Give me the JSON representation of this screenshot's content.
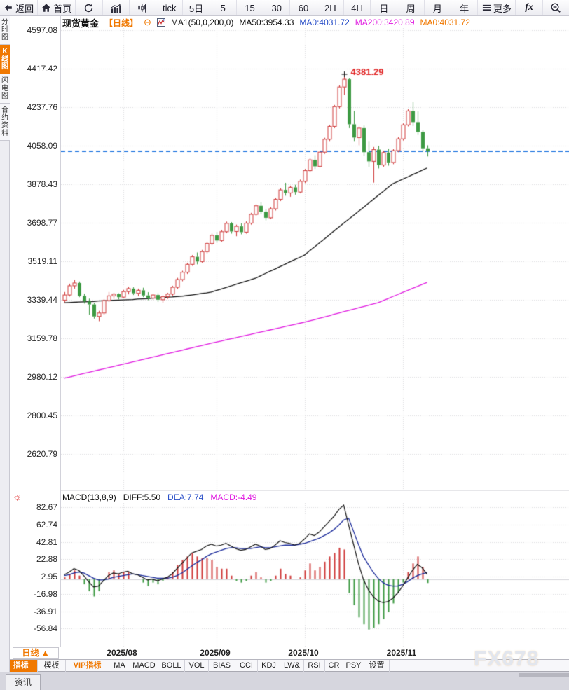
{
  "toolbar": {
    "items": [
      {
        "name": "back",
        "label": "返回",
        "icon": "back-icon",
        "wide": true
      },
      {
        "name": "home",
        "label": "首页",
        "icon": "home-icon",
        "wide": true
      },
      {
        "name": "refresh",
        "label": "",
        "icon": "refresh-icon"
      },
      {
        "name": "bar-chart-mode",
        "label": "",
        "icon": "bar-chart-icon"
      },
      {
        "name": "candle-mode",
        "label": "",
        "icon": "candlestick-icon"
      },
      {
        "name": "tick",
        "label": "tick"
      },
      {
        "name": "5day",
        "label": "5日"
      },
      {
        "name": "5min",
        "label": "5"
      },
      {
        "name": "15min",
        "label": "15"
      },
      {
        "name": "30min",
        "label": "30"
      },
      {
        "name": "60min",
        "label": "60"
      },
      {
        "name": "2h",
        "label": "2H"
      },
      {
        "name": "4h",
        "label": "4H"
      },
      {
        "name": "day",
        "label": "日"
      },
      {
        "name": "week",
        "label": "周"
      },
      {
        "name": "month",
        "label": "月"
      },
      {
        "name": "year",
        "label": "年"
      },
      {
        "name": "more",
        "label": "更多",
        "icon": "menu-icon",
        "wide": true
      },
      {
        "name": "fx",
        "label": "fx",
        "fx": true
      },
      {
        "name": "zoom-out",
        "label": "",
        "icon": "zoom-out-icon"
      }
    ]
  },
  "sidebar": {
    "tabs": [
      {
        "name": "time-share-chart",
        "label": "分时图",
        "active": false
      },
      {
        "name": "kline-chart",
        "label": "K线图",
        "active": true
      },
      {
        "name": "lightning-chart",
        "label": "闪电图",
        "active": false
      },
      {
        "name": "contract-info",
        "label": "合约资料",
        "active": false
      }
    ]
  },
  "news_tab": "资讯",
  "watermark": "FX678",
  "chart_header": {
    "symbol": "现货黄金",
    "period": "【日线】",
    "collapse_glyph": "⊖",
    "ma_settings": "MA1(50,0,200,0)",
    "ma50": "MA50:3954.33",
    "ma0_blue": "MA0:4031.72",
    "ma200": "MA200:3420.89",
    "ma0_orange": "MA0:4031.72"
  },
  "macd_header": {
    "title": "MACD(13,8,9)",
    "diff": "DIFF:5.50",
    "dea": "DEA:7.74",
    "macd": "MACD:-4.49",
    "gear_glyph": "☼"
  },
  "x_axis": {
    "period_button": "日线 ▲"
  },
  "tab_bar": {
    "tabs": [
      {
        "name": "indicator",
        "label": "指标",
        "active": true
      },
      {
        "name": "template",
        "label": "模板"
      },
      {
        "name": "vip-indicator",
        "label": "VIP指标",
        "vip": true
      },
      {
        "name": "ma",
        "label": "MA"
      },
      {
        "name": "macd",
        "label": "MACD"
      },
      {
        "name": "boll",
        "label": "BOLL"
      },
      {
        "name": "vol",
        "label": "VOL"
      },
      {
        "name": "bias",
        "label": "BIAS"
      },
      {
        "name": "cci",
        "label": "CCI"
      },
      {
        "name": "kdj",
        "label": "KDJ"
      },
      {
        "name": "lwr",
        "label": "LW&"
      },
      {
        "name": "rsi",
        "label": "RSI"
      },
      {
        "name": "cr",
        "label": "CR"
      },
      {
        "name": "psy",
        "label": "PSY"
      },
      {
        "name": "settings",
        "label": "设置"
      }
    ]
  },
  "colors": {
    "accent_orange": "#f07800",
    "up_red": "#cf3a3a",
    "down_green": "#3d9a43",
    "ma50": "#111111",
    "ma200": "#e018e0",
    "dea_blue": "#1a2a9a",
    "diff_black": "#111111",
    "price_line_blue": "#2a7be0",
    "peak_label_red": "#e02222",
    "grid": "#dcdcdf"
  },
  "chart_data": {
    "type": "candlestick",
    "symbol": "现货黄金",
    "period": "日线",
    "y_axis_ticks": [
      4597.08,
      4417.42,
      4237.76,
      4058.09,
      3878.43,
      3698.77,
      3519.11,
      3339.44,
      3159.78,
      2980.12,
      2800.45,
      2620.79
    ],
    "current_price": 4031.72,
    "peak_annotation": {
      "price": 4381.29,
      "candle_index": 57
    },
    "months": [
      {
        "label": "2025/08",
        "candle_index": 12
      },
      {
        "label": "2025/09",
        "candle_index": 31
      },
      {
        "label": "2025/10",
        "candle_index": 49
      },
      {
        "label": "2025/11",
        "candle_index": 69
      }
    ],
    "candles": [
      [
        3338,
        3376,
        3328,
        3362
      ],
      [
        3362,
        3415,
        3355,
        3405
      ],
      [
        3405,
        3432,
        3392,
        3418
      ],
      [
        3418,
        3425,
        3352,
        3358
      ],
      [
        3358,
        3368,
        3322,
        3332
      ],
      [
        3332,
        3345,
        3270,
        3318
      ],
      [
        3318,
        3325,
        3252,
        3262
      ],
      [
        3262,
        3288,
        3240,
        3278
      ],
      [
        3278,
        3342,
        3270,
        3336
      ],
      [
        3336,
        3376,
        3330,
        3358
      ],
      [
        3358,
        3372,
        3344,
        3366
      ],
      [
        3366,
        3370,
        3342,
        3352
      ],
      [
        3352,
        3386,
        3348,
        3378
      ],
      [
        3378,
        3400,
        3365,
        3392
      ],
      [
        3392,
        3398,
        3362,
        3370
      ],
      [
        3370,
        3392,
        3356,
        3384
      ],
      [
        3384,
        3396,
        3352,
        3360
      ],
      [
        3360,
        3375,
        3338,
        3348
      ],
      [
        3348,
        3368,
        3340,
        3362
      ],
      [
        3362,
        3370,
        3330,
        3340
      ],
      [
        3340,
        3360,
        3326,
        3354
      ],
      [
        3354,
        3372,
        3344,
        3366
      ],
      [
        3366,
        3405,
        3358,
        3398
      ],
      [
        3398,
        3442,
        3390,
        3434
      ],
      [
        3434,
        3475,
        3426,
        3468
      ],
      [
        3468,
        3512,
        3460,
        3505
      ],
      [
        3505,
        3548,
        3498,
        3540
      ],
      [
        3540,
        3560,
        3505,
        3518
      ],
      [
        3518,
        3572,
        3512,
        3564
      ],
      [
        3564,
        3610,
        3556,
        3602
      ],
      [
        3602,
        3648,
        3594,
        3640
      ],
      [
        3640,
        3656,
        3605,
        3616
      ],
      [
        3616,
        3665,
        3610,
        3657
      ],
      [
        3657,
        3704,
        3650,
        3696
      ],
      [
        3696,
        3702,
        3648,
        3658
      ],
      [
        3658,
        3690,
        3636,
        3682
      ],
      [
        3682,
        3696,
        3645,
        3655
      ],
      [
        3655,
        3705,
        3648,
        3697
      ],
      [
        3697,
        3745,
        3690,
        3738
      ],
      [
        3738,
        3785,
        3730,
        3778
      ],
      [
        3778,
        3795,
        3738,
        3750
      ],
      [
        3750,
        3764,
        3710,
        3722
      ],
      [
        3722,
        3772,
        3716,
        3764
      ],
      [
        3764,
        3815,
        3756,
        3808
      ],
      [
        3808,
        3860,
        3800,
        3852
      ],
      [
        3852,
        3885,
        3825,
        3838
      ],
      [
        3838,
        3872,
        3820,
        3864
      ],
      [
        3864,
        3876,
        3830,
        3842
      ],
      [
        3842,
        3900,
        3836,
        3892
      ],
      [
        3892,
        3950,
        3884,
        3942
      ],
      [
        3942,
        4000,
        3934,
        3992
      ],
      [
        3992,
        4014,
        3950,
        3962
      ],
      [
        3962,
        4035,
        3956,
        4028
      ],
      [
        4028,
        4095,
        4020,
        4088
      ],
      [
        4088,
        4155,
        4080,
        4148
      ],
      [
        4148,
        4248,
        4140,
        4240
      ],
      [
        4240,
        4340,
        4232,
        4332
      ],
      [
        4332,
        4381.29,
        4295,
        4368
      ],
      [
        4368,
        4372,
        4140,
        4158
      ],
      [
        4158,
        4220,
        4080,
        4096
      ],
      [
        4096,
        4148,
        4060,
        4140
      ],
      [
        4140,
        4152,
        4010,
        4028
      ],
      [
        4028,
        4080,
        3960,
        3985
      ],
      [
        3985,
        4052,
        3886,
        4040
      ],
      [
        4040,
        4058,
        3952,
        3968
      ],
      [
        3968,
        4035,
        3960,
        4026
      ],
      [
        4026,
        4044,
        3965,
        3980
      ],
      [
        3980,
        4042,
        3972,
        4035
      ],
      [
        4035,
        4098,
        4028,
        4090
      ],
      [
        4090,
        4162,
        4082,
        4155
      ],
      [
        4155,
        4228,
        4148,
        4220
      ],
      [
        4220,
        4262,
        4150,
        4168
      ],
      [
        4168,
        4218,
        4108,
        4122
      ],
      [
        4122,
        4130,
        4030,
        4046
      ],
      [
        4046,
        4060,
        4008,
        4031.72
      ]
    ],
    "ma50": [
      3326,
      3327,
      3328,
      3329,
      3330,
      3331,
      3332,
      3334,
      3335,
      3336,
      3337,
      3338,
      3339,
      3340,
      3341,
      3343,
      3344,
      3345,
      3347,
      3348,
      3350,
      3352,
      3353,
      3355,
      3356,
      3359,
      3362,
      3365,
      3369,
      3372,
      3376,
      3383,
      3390,
      3397,
      3404,
      3412,
      3419,
      3426,
      3433,
      3440,
      3451,
      3462,
      3473,
      3483,
      3494,
      3505,
      3516,
      3527,
      3537,
      3548,
      3567,
      3585,
      3604,
      3622,
      3641,
      3660,
      3678,
      3697,
      3715,
      3733,
      3752,
      3770,
      3789,
      3807,
      3826,
      3844,
      3863,
      3881,
      3891,
      3902,
      3912,
      3923,
      3933,
      3944,
      3954.33
    ],
    "ma200": [
      2974,
      2979,
      2985,
      2990,
      2996,
      3001,
      3007,
      3012,
      3017,
      3023,
      3028,
      3034,
      3039,
      3044,
      3050,
      3055,
      3061,
      3066,
      3072,
      3077,
      3083,
      3088,
      3093,
      3099,
      3104,
      3110,
      3115,
      3121,
      3126,
      3132,
      3137,
      3142,
      3147,
      3153,
      3158,
      3163,
      3168,
      3173,
      3178,
      3184,
      3189,
      3194,
      3199,
      3204,
      3209,
      3215,
      3220,
      3225,
      3230,
      3235,
      3241,
      3247,
      3253,
      3259,
      3265,
      3272,
      3278,
      3284,
      3290,
      3296,
      3302,
      3308,
      3314,
      3320,
      3326,
      3336,
      3345,
      3355,
      3364,
      3374,
      3383,
      3393,
      3402,
      3412,
      3420.89
    ],
    "macd": {
      "params": "13,8,9",
      "diff_current": 5.5,
      "dea_current": 7.74,
      "macd_current": -4.49,
      "histogram_rule": "2*(diff-dea)",
      "y_axis_ticks": [
        82.67,
        62.74,
        42.81,
        22.88,
        2.95,
        -16.98,
        -36.91,
        -56.84
      ],
      "diff": [
        5,
        8,
        12,
        10,
        4,
        -3,
        -9,
        -8,
        -2,
        4,
        7,
        6,
        8,
        9,
        6,
        5,
        2,
        -1,
        0,
        -2,
        0,
        2,
        6,
        12,
        18,
        24,
        30,
        32,
        34,
        38,
        40,
        38,
        39,
        41,
        38,
        35,
        33,
        34,
        37,
        40,
        38,
        34,
        35,
        39,
        44,
        42,
        41,
        39,
        41,
        46,
        52,
        50,
        54,
        60,
        66,
        72,
        80,
        85,
        62,
        40,
        18,
        0,
        -12,
        -20,
        -25,
        -27,
        -26,
        -22,
        -16,
        -8,
        1,
        10,
        17,
        13,
        5.5
      ],
      "dea": [
        4,
        5,
        7,
        8,
        7,
        4,
        1,
        -1,
        -1,
        0,
        2,
        3,
        4,
        5,
        6,
        5,
        4,
        3,
        2,
        1,
        1,
        1,
        2,
        4,
        7,
        11,
        15,
        19,
        22,
        26,
        29,
        31,
        33,
        35,
        36,
        36,
        35,
        35,
        35,
        36,
        37,
        36,
        36,
        37,
        38,
        39,
        39,
        39,
        40,
        41,
        43,
        45,
        47,
        50,
        53,
        57,
        62,
        68,
        70,
        55,
        40,
        26,
        17,
        8,
        1,
        -4,
        -7,
        -8,
        -8,
        -6,
        -3,
        1,
        4,
        6,
        7.74
      ]
    }
  }
}
